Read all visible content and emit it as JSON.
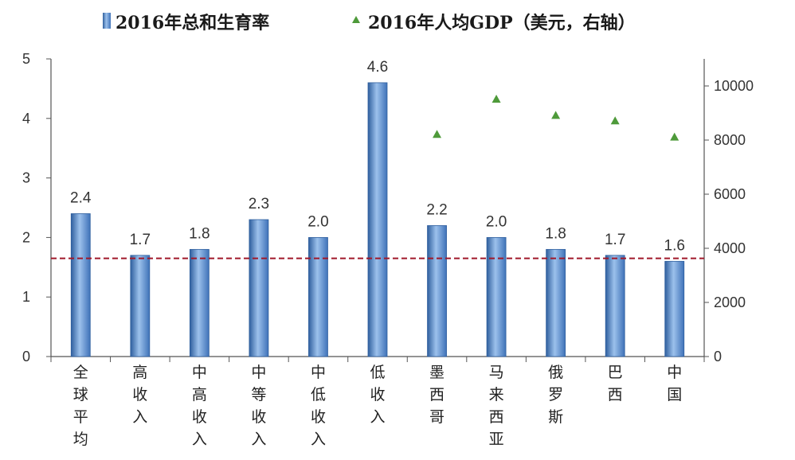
{
  "chart_data": {
    "type": "bar",
    "categories": [
      "全球平均",
      "高收入",
      "中高收入",
      "中等收入",
      "中低收入",
      "低收入",
      "墨西哥",
      "马来西亚",
      "俄罗斯",
      "巴西",
      "中国"
    ],
    "series": [
      {
        "name": "2016年总和生育率",
        "type": "bar",
        "axis": "left",
        "values": [
          2.4,
          1.7,
          1.8,
          2.3,
          2.0,
          4.6,
          2.2,
          2.0,
          1.8,
          1.7,
          1.6
        ],
        "labels": [
          "2.4",
          "1.7",
          "1.8",
          "2.3",
          "2.0",
          "4.6",
          "2.2",
          "2.0",
          "1.8",
          "1.7",
          "1.6"
        ]
      },
      {
        "name": "2016年人均GDP（美元，右轴）",
        "type": "scatter",
        "axis": "right",
        "values": [
          null,
          null,
          null,
          null,
          null,
          null,
          8200,
          9500,
          8900,
          8700,
          8100
        ]
      }
    ],
    "left_axis": {
      "min": 0,
      "max": 5,
      "ticks": [
        "0",
        "1",
        "2",
        "3",
        "4",
        "5"
      ]
    },
    "right_axis": {
      "min": 0,
      "max": 11000,
      "ticks": [
        "0",
        "2000",
        "4000",
        "6000",
        "8000",
        "10000"
      ],
      "tick_values": [
        0,
        2000,
        4000,
        6000,
        8000,
        10000
      ]
    },
    "reference_line": {
      "value": 1.65,
      "axis": "left",
      "style": "dashed",
      "color": "#a0182a"
    },
    "legend_position": "top",
    "grid": false,
    "colors": {
      "bar": "#5b8fd0",
      "bar_dark": "#2f5f9e",
      "marker": "#4e9a3a",
      "axis": "#555555"
    }
  }
}
